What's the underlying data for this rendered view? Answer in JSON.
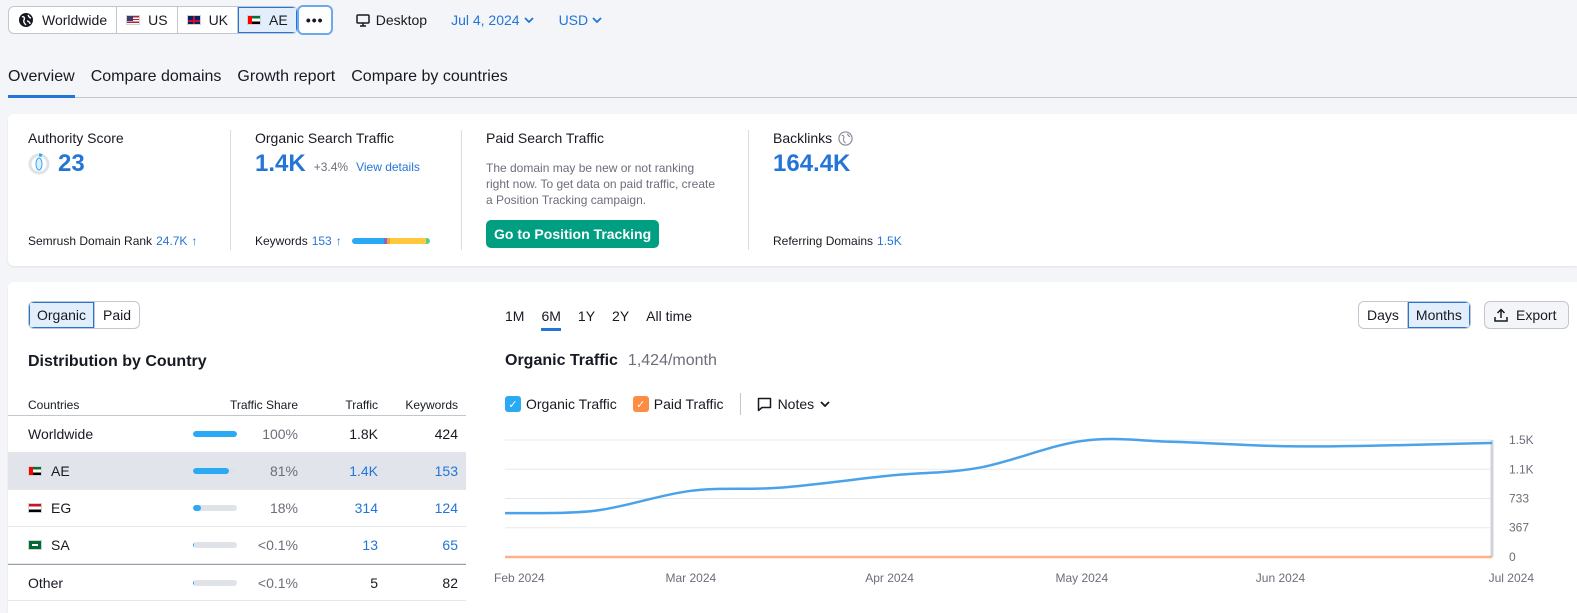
{
  "topbar": {
    "databases": [
      {
        "label": "Worldwide",
        "icon": "globe-icon",
        "flag": ""
      },
      {
        "label": "US",
        "icon": "flag-us-icon",
        "flag": "us"
      },
      {
        "label": "UK",
        "icon": "flag-uk-icon",
        "flag": "uk"
      },
      {
        "label": "AE",
        "icon": "flag-ae-icon",
        "flag": "ae",
        "active": true
      }
    ],
    "more_label": "•••",
    "device_label": "Desktop",
    "date_label": "Jul 4, 2024",
    "currency_label": "USD"
  },
  "tabs": [
    {
      "label": "Overview",
      "active": true
    },
    {
      "label": "Compare domains"
    },
    {
      "label": "Growth report"
    },
    {
      "label": "Compare by countries"
    }
  ],
  "summary": {
    "authority": {
      "title": "Authority Score",
      "value": "23",
      "foot_label": "Semrush Domain Rank",
      "foot_value": "24.7K",
      "foot_arrow": "↑"
    },
    "organic": {
      "title": "Organic Search Traffic",
      "value": "1.4K",
      "change": "+3.4%",
      "link": "View details",
      "foot_label": "Keywords",
      "foot_value": "153",
      "foot_arrow": "↑"
    },
    "paid": {
      "title": "Paid Search Traffic",
      "note": "The domain may be new or not ranking right now. To get data on paid traffic, create a Position Tracking campaign.",
      "button": "Go to Position Tracking"
    },
    "backlinks": {
      "title": "Backlinks",
      "value": "164.4K",
      "foot_label": "Referring Domains",
      "foot_value": "1.5K"
    }
  },
  "keyword_bar_colors": [
    "#2aa9f5",
    "#8a63d2",
    "#f5a623",
    "#ffc83d",
    "#4ed19b"
  ],
  "left_panel": {
    "toggle": [
      "Organic",
      "Paid"
    ],
    "title": "Distribution by Country",
    "headers": {
      "country": "Countries",
      "share": "Traffic Share",
      "traffic": "Traffic",
      "keywords": "Keywords"
    },
    "rows": [
      {
        "country": "Worldwide",
        "flag": "",
        "share_pct": 100,
        "share": "100%",
        "traffic": "1.8K",
        "keywords": "424",
        "linked": false
      },
      {
        "country": "AE",
        "flag": "ae",
        "share_pct": 81,
        "share": "81%",
        "traffic": "1.4K",
        "keywords": "153",
        "linked": true,
        "selected": true
      },
      {
        "country": "EG",
        "flag": "eg",
        "share_pct": 18,
        "share": "18%",
        "traffic": "314",
        "keywords": "124",
        "linked": true
      },
      {
        "country": "SA",
        "flag": "sa",
        "share_pct": 0.1,
        "share": "<0.1%",
        "traffic": "13",
        "keywords": "65",
        "linked": true
      },
      {
        "country": "Other",
        "flag": "",
        "share_pct": 0.1,
        "share": "<0.1%",
        "traffic": "5",
        "keywords": "82",
        "linked": false
      }
    ]
  },
  "chart_controls": {
    "periods": [
      "1M",
      "6M",
      "1Y",
      "2Y",
      "All time"
    ],
    "active_period": "6M",
    "granularity": [
      "Days",
      "Months"
    ],
    "export_label": "Export",
    "title": "Organic Traffic",
    "subtitle": "1,424/month",
    "legend": [
      {
        "label": "Organic Traffic",
        "color": "#2aa9f5",
        "checked": true
      },
      {
        "label": "Paid Traffic",
        "color": "#ff8c43",
        "checked": true
      }
    ],
    "notes_label": "Notes"
  },
  "chart_data": {
    "type": "line",
    "x": [
      "2024-02-01",
      "2024-02-15",
      "2024-03-01",
      "2024-03-15",
      "2024-04-01",
      "2024-04-15",
      "2024-05-01",
      "2024-05-15",
      "2024-06-01",
      "2024-06-15",
      "2024-07-01",
      "2024-07-04"
    ],
    "x_tick_labels": [
      "Feb 2024",
      "Mar 2024",
      "Apr 2024",
      "May 2024",
      "Jun 2024",
      "Jul 2024"
    ],
    "y_tick_labels": [
      "0",
      "367",
      "733",
      "1.1K",
      "1.5K"
    ],
    "y_ticks": [
      0,
      367,
      733,
      1100,
      1467
    ],
    "ylim": [
      0,
      1467
    ],
    "series": [
      {
        "name": "Organic Traffic",
        "color": "#4aa3ea",
        "values": [
          550,
          580,
          830,
          870,
          1020,
          1120,
          1455,
          1445,
          1390,
          1395,
          1425,
          1430
        ]
      },
      {
        "name": "Paid Traffic",
        "color": "#ffb089",
        "values": [
          0,
          0,
          0,
          0,
          0,
          0,
          0,
          0,
          0,
          0,
          0,
          0
        ]
      }
    ]
  }
}
